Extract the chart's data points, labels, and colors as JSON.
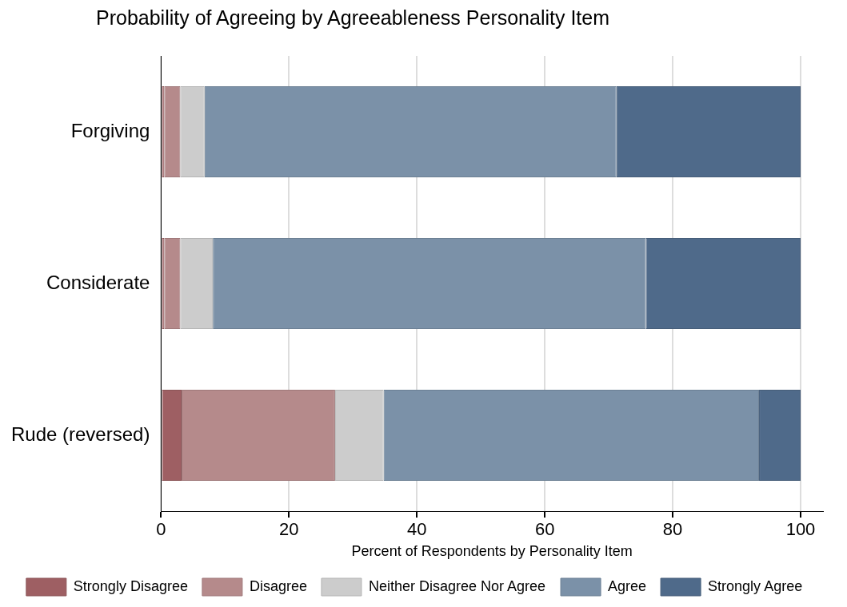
{
  "chart_data": {
    "type": "bar",
    "orientation": "horizontal",
    "stacked": true,
    "title": "Probability of Agreeing by Agreeableness Personality Item",
    "xlabel": "Percent of Respondents by Personality Item",
    "categories": [
      "Forgiving",
      "Considerate",
      "Rude (reversed)"
    ],
    "series": [
      {
        "name": "Strongly Disagree",
        "color": "#9e5f63",
        "values": [
          0.5,
          0.5,
          3.2
        ]
      },
      {
        "name": "Disagree",
        "color": "#b58a8b",
        "values": [
          2.5,
          2.5,
          24.0
        ]
      },
      {
        "name": "Neither Disagree Nor Agree",
        "color": "#cccccc",
        "values": [
          3.8,
          5.1,
          7.6
        ]
      },
      {
        "name": "Agree",
        "color": "#7b91a8",
        "values": [
          64.4,
          67.7,
          58.7
        ]
      },
      {
        "name": "Strongly Agree",
        "color": "#4f6a8a",
        "values": [
          28.8,
          24.2,
          6.5
        ]
      }
    ],
    "xlim": [
      0,
      103.5
    ],
    "xticks": [
      0,
      20,
      40,
      60,
      80,
      100
    ],
    "grid": "x",
    "legend": "bottom"
  }
}
